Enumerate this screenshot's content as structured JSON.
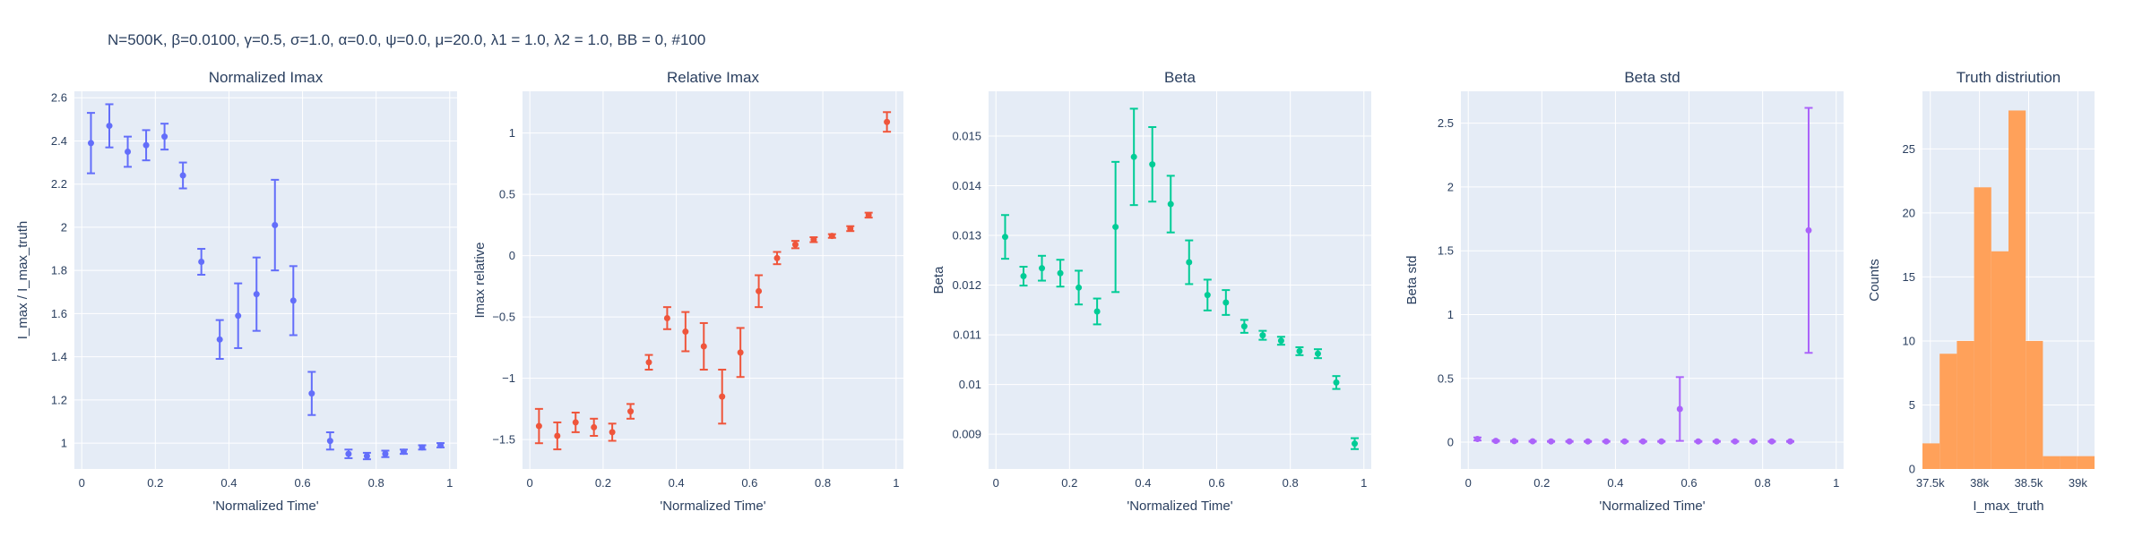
{
  "figure_title": "N=500K, β=0.0100, γ=0.5, σ=1.0,  α=0.0, ψ=0.0, μ=20.0, λ1 = 1.0, λ2 = 1.0, BB = 0, #100",
  "colors": {
    "plot_bg": "#E5ECF6",
    "grid": "#ffffff",
    "text": "#2a3f5f",
    "series_1": "#636EFA",
    "series_2": "#EF553B",
    "series_3": "#00CC96",
    "series_4": "#AB63FA",
    "series_5": "#FFA15A"
  },
  "chart_data": [
    {
      "type": "scatter",
      "title": "Normalized Imax",
      "xlabel": "'Normalized Time'",
      "ylabel": "I_max / I_max_truth",
      "xlim": [
        -0.02,
        1.02
      ],
      "ylim": [
        0.88,
        2.63
      ],
      "grid": true,
      "xticks": [
        0,
        0.2,
        0.4,
        0.6,
        0.8,
        1
      ],
      "xtick_labels": [
        "0",
        "0.2",
        "0.4",
        "0.6",
        "0.8",
        "1"
      ],
      "yticks": [
        1,
        1.2,
        1.4,
        1.6,
        1.8,
        2,
        2.2,
        2.4,
        2.6
      ],
      "ytick_labels": [
        "1",
        "1.2",
        "1.4",
        "1.6",
        "1.8",
        "2",
        "2.2",
        "2.4",
        "2.6"
      ],
      "color": "#636EFA",
      "x": [
        0.025,
        0.075,
        0.125,
        0.175,
        0.225,
        0.275,
        0.325,
        0.375,
        0.425,
        0.475,
        0.525,
        0.575,
        0.625,
        0.675,
        0.725,
        0.775,
        0.825,
        0.875,
        0.925,
        0.975
      ],
      "y": [
        2.39,
        2.47,
        2.35,
        2.38,
        2.42,
        2.24,
        1.84,
        1.48,
        1.59,
        1.69,
        2.01,
        1.66,
        1.23,
        1.01,
        0.95,
        0.94,
        0.95,
        0.96,
        0.98,
        0.99
      ],
      "err": [
        0.14,
        0.1,
        0.07,
        0.07,
        0.06,
        0.06,
        0.06,
        0.09,
        0.15,
        0.17,
        0.21,
        0.16,
        0.1,
        0.04,
        0.02,
        0.015,
        0.015,
        0.01,
        0.01,
        0.01
      ]
    },
    {
      "type": "scatter",
      "title": "Relative Imax",
      "xlabel": "'Normalized Time'",
      "ylabel": "Imax relative",
      "xlim": [
        -0.02,
        1.02
      ],
      "ylim": [
        -1.74,
        1.34
      ],
      "grid": true,
      "xticks": [
        0,
        0.2,
        0.4,
        0.6,
        0.8,
        1
      ],
      "xtick_labels": [
        "0",
        "0.2",
        "0.4",
        "0.6",
        "0.8",
        "1"
      ],
      "yticks": [
        -1.5,
        -1,
        -0.5,
        0,
        0.5,
        1
      ],
      "ytick_labels": [
        "−1.5",
        "−1",
        "−0.5",
        "0",
        "0.5",
        "1"
      ],
      "color": "#EF553B",
      "x": [
        0.025,
        0.075,
        0.125,
        0.175,
        0.225,
        0.275,
        0.325,
        0.375,
        0.425,
        0.475,
        0.525,
        0.575,
        0.625,
        0.675,
        0.725,
        0.775,
        0.825,
        0.875,
        0.925,
        0.975
      ],
      "y": [
        -1.39,
        -1.47,
        -1.36,
        -1.4,
        -1.44,
        -1.27,
        -0.87,
        -0.51,
        -0.62,
        -0.74,
        -1.15,
        -0.79,
        -0.29,
        -0.02,
        0.09,
        0.13,
        0.16,
        0.22,
        0.33,
        1.09
      ],
      "err": [
        0.14,
        0.11,
        0.08,
        0.07,
        0.07,
        0.06,
        0.06,
        0.09,
        0.16,
        0.19,
        0.22,
        0.2,
        0.13,
        0.05,
        0.03,
        0.02,
        0.015,
        0.02,
        0.02,
        0.08
      ]
    },
    {
      "type": "scatter",
      "title": "Beta",
      "xlabel": "'Normalized Time'",
      "ylabel": "Beta",
      "xlim": [
        -0.02,
        1.02
      ],
      "ylim": [
        0.0083,
        0.0159
      ],
      "grid": true,
      "xticks": [
        0,
        0.2,
        0.4,
        0.6,
        0.8,
        1
      ],
      "xtick_labels": [
        "0",
        "0.2",
        "0.4",
        "0.6",
        "0.8",
        "1"
      ],
      "yticks": [
        0.009,
        0.01,
        0.011,
        0.012,
        0.013,
        0.014,
        0.015
      ],
      "ytick_labels": [
        "0.009",
        "0.01",
        "0.011",
        "0.012",
        "0.013",
        "0.014",
        "0.015"
      ],
      "color": "#00CC96",
      "x": [
        0.025,
        0.075,
        0.125,
        0.175,
        0.225,
        0.275,
        0.325,
        0.375,
        0.425,
        0.475,
        0.525,
        0.575,
        0.625,
        0.675,
        0.725,
        0.775,
        0.825,
        0.875,
        0.925,
        0.975
      ],
      "y": [
        0.01297,
        0.01218,
        0.01234,
        0.01224,
        0.01195,
        0.01147,
        0.01317,
        0.01458,
        0.01443,
        0.01363,
        0.01246,
        0.0118,
        0.01165,
        0.01117,
        0.01099,
        0.01088,
        0.01067,
        0.01062,
        0.01004,
        0.00881
      ],
      "err": [
        0.00044,
        0.00019,
        0.00025,
        0.00027,
        0.00034,
        0.00026,
        0.00131,
        0.00097,
        0.00075,
        0.00057,
        0.00044,
        0.00031,
        0.00025,
        0.00013,
        9e-05,
        8e-05,
        8e-05,
        9e-05,
        0.00013,
        0.00011
      ]
    },
    {
      "type": "scatter",
      "title": "Beta std",
      "xlabel": "'Normalized Time'",
      "ylabel": "Beta std",
      "xlim": [
        -0.02,
        1.02
      ],
      "ylim": [
        -0.21,
        2.75
      ],
      "grid": true,
      "xticks": [
        0,
        0.2,
        0.4,
        0.6,
        0.8,
        1
      ],
      "xtick_labels": [
        "0",
        "0.2",
        "0.4",
        "0.6",
        "0.8",
        "1"
      ],
      "yticks": [
        0,
        0.5,
        1,
        1.5,
        2,
        2.5
      ],
      "ytick_labels": [
        "0",
        "0.5",
        "1",
        "1.5",
        "2",
        "2.5"
      ],
      "color": "#AB63FA",
      "x": [
        0.025,
        0.075,
        0.125,
        0.175,
        0.225,
        0.275,
        0.325,
        0.375,
        0.425,
        0.475,
        0.525,
        0.575,
        0.625,
        0.675,
        0.725,
        0.775,
        0.825,
        0.875,
        0.925
      ],
      "y": [
        0.025,
        0.01,
        0.008,
        0.007,
        0.006,
        0.006,
        0.006,
        0.006,
        0.006,
        0.006,
        0.006,
        0.26,
        0.006,
        0.006,
        0.006,
        0.006,
        0.006,
        0.006,
        1.66
      ],
      "err": [
        0.012,
        0.005,
        0.004,
        0.003,
        0.003,
        0.003,
        0.003,
        0.003,
        0.003,
        0.003,
        0.003,
        0.25,
        0.003,
        0.003,
        0.003,
        0.003,
        0.003,
        0.003,
        0.96
      ]
    },
    {
      "type": "bar",
      "subtype": "histogram",
      "title": "Truth distriution",
      "xlabel": "I_max_truth",
      "ylabel": "Counts",
      "xlim": [
        37420,
        39170
      ],
      "ylim": [
        0,
        29.5
      ],
      "grid": true,
      "xticks": [
        37500,
        38000,
        38500,
        39000
      ],
      "xtick_labels": [
        "37.5k",
        "38k",
        "38.5k",
        "39k"
      ],
      "yticks": [
        0,
        5,
        10,
        15,
        20,
        25
      ],
      "ytick_labels": [
        "0",
        "5",
        "10",
        "15",
        "20",
        "25"
      ],
      "color": "#FFA15A",
      "bin_edges": [
        37420,
        37595,
        37770,
        37945,
        38120,
        38295,
        38470,
        38645,
        38820,
        38995,
        39170
      ],
      "values": [
        2,
        9,
        10,
        22,
        17,
        28,
        10,
        1,
        1,
        1
      ]
    }
  ]
}
